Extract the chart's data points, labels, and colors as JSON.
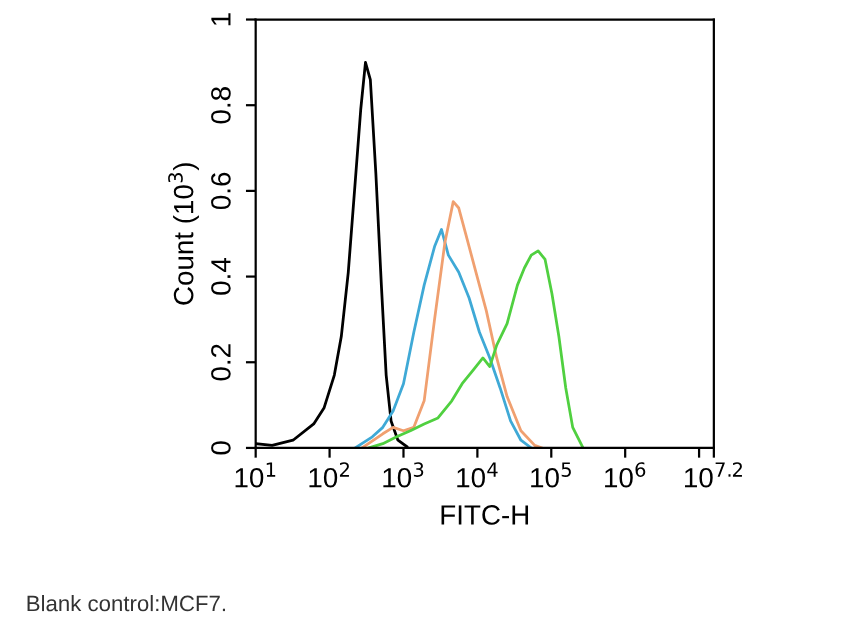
{
  "chart_data": {
    "type": "line",
    "xlabel": "FITC-H",
    "ylabel": "Count (10$^{3}$)",
    "log": "x",
    "xlim": [
      10,
      15848932
    ],
    "xticks": [
      {
        "value": 10,
        "label": "10$^{1}$"
      },
      {
        "value": 100,
        "label": "10$^{2}$"
      },
      {
        "value": 1000,
        "label": "10$^{3}$"
      },
      {
        "value": 10000,
        "label": "10$^{4}$"
      },
      {
        "value": 100000,
        "label": "10$^{5}$"
      },
      {
        "value": 1000000,
        "label": "10$^{6}$"
      },
      {
        "value": 10000000,
        "label": null
      },
      {
        "value": 15848932,
        "label": "10$^{7.2}$"
      }
    ],
    "ylim": [
      0,
      1
    ],
    "yticks": [
      0,
      0.2,
      0.4,
      0.6,
      0.8,
      1
    ],
    "grid": false,
    "legend": false,
    "marker": "none",
    "line_style": "solid",
    "series": [
      {
        "color": "#000000",
        "x": [
          10,
          16.7,
          32,
          61,
          84,
          116,
          144,
          179,
          222,
          264,
          306,
          356,
          423,
          502,
          583,
          679,
          841,
          1110
        ],
        "values": [
          0.01,
          0.006,
          0.018,
          0.056,
          0.093,
          0.17,
          0.26,
          0.41,
          0.62,
          0.79,
          0.9,
          0.86,
          0.64,
          0.38,
          0.17,
          0.063,
          0.018,
          0.003
        ]
      },
      {
        "color": "#3fa9d6",
        "x": [
          222,
          379,
          525,
          724,
          1000,
          1380,
          1905,
          2634,
          3266,
          4048,
          5598,
          7727,
          10670,
          14730,
          20320,
          28120,
          38820,
          53580
        ],
        "values": [
          0,
          0.026,
          0.048,
          0.086,
          0.15,
          0.27,
          0.38,
          0.47,
          0.51,
          0.45,
          0.41,
          0.35,
          0.27,
          0.21,
          0.14,
          0.063,
          0.018,
          0
        ]
      },
      {
        "color": "#f0a070",
        "x": [
          275,
          525,
          724,
          1000,
          1380,
          1905,
          2634,
          3640,
          4713,
          5598,
          6935,
          9573,
          13220,
          18270,
          25230,
          38820,
          59700,
          73960
        ],
        "values": [
          0,
          0.033,
          0.048,
          0.04,
          0.048,
          0.11,
          0.3,
          0.48,
          0.575,
          0.56,
          0.5,
          0.41,
          0.32,
          0.21,
          0.12,
          0.04,
          0.006,
          0
        ]
      },
      {
        "color": "#50d040",
        "x": [
          341,
          525,
          807,
          1240,
          1905,
          2930,
          4508,
          6223,
          8603,
          11880,
          14730,
          18270,
          25230,
          34830,
          43250,
          53580,
          66370,
          82410,
          102100,
          126700,
          157000,
          195000,
          269200
        ],
        "values": [
          0,
          0.01,
          0.026,
          0.04,
          0.056,
          0.07,
          0.11,
          0.15,
          0.18,
          0.21,
          0.19,
          0.24,
          0.29,
          0.38,
          0.42,
          0.45,
          0.46,
          0.44,
          0.36,
          0.26,
          0.14,
          0.048,
          0
        ]
      }
    ],
    "annotations": [
      "Blank control:MCF7."
    ]
  }
}
